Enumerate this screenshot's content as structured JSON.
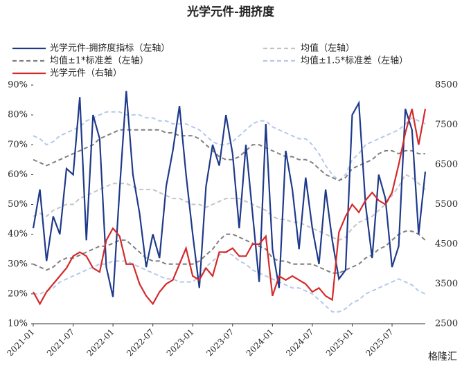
{
  "chart_data": {
    "type": "line",
    "title": "光学元件-拥挤度",
    "x": [
      "2021-01",
      "2021-02",
      "2021-03",
      "2021-04",
      "2021-05",
      "2021-06",
      "2021-07",
      "2021-08",
      "2021-09",
      "2021-10",
      "2021-11",
      "2021-12",
      "2022-01",
      "2022-02",
      "2022-03",
      "2022-04",
      "2022-05",
      "2022-06",
      "2022-07",
      "2022-08",
      "2022-09",
      "2022-10",
      "2022-11",
      "2022-12",
      "2023-01",
      "2023-02",
      "2023-03",
      "2023-04",
      "2023-05",
      "2023-06",
      "2023-07",
      "2023-08",
      "2023-09",
      "2023-10",
      "2023-11",
      "2023-12",
      "2024-01",
      "2024-02",
      "2024-03",
      "2024-04",
      "2024-05",
      "2024-06",
      "2024-07",
      "2024-08",
      "2024-09",
      "2024-10",
      "2024-11",
      "2024-12",
      "2025-01",
      "2025-02",
      "2025-03",
      "2025-04",
      "2025-05",
      "2025-06",
      "2025-07",
      "2025-08",
      "2025-09",
      "2025-10",
      "2025-11",
      "2025-12"
    ],
    "xticks": [
      "2021-01",
      "2021-07",
      "2022-01",
      "2022-07",
      "2023-01",
      "2023-07",
      "2024-01",
      "2024-07",
      "2025-01",
      "2025-07"
    ],
    "ylim": [
      10,
      90
    ],
    "yticks": [
      {
        "value": 10,
        "label": "10%"
      },
      {
        "value": 20,
        "label": "20%"
      },
      {
        "value": 30,
        "label": "30%"
      },
      {
        "value": 40,
        "label": "40%"
      },
      {
        "value": 50,
        "label": "50%"
      },
      {
        "value": 60,
        "label": "60%"
      },
      {
        "value": 70,
        "label": "70%"
      },
      {
        "value": 80,
        "label": "80%"
      },
      {
        "value": 90,
        "label": "90%"
      }
    ],
    "y2lim": [
      2500,
      8500
    ],
    "y2ticks": [
      2500,
      3500,
      4500,
      5500,
      6500,
      7500,
      8500
    ],
    "series": [
      {
        "name": "光学元件-拥挤度指标（左轴）",
        "color": "#1f3a8a",
        "dash": false,
        "values": [
          42,
          55,
          31,
          46,
          40,
          62,
          60,
          86,
          38,
          80,
          72,
          29,
          19,
          55,
          88,
          60,
          47,
          29,
          40,
          32,
          56,
          68,
          83,
          60,
          40,
          22,
          56,
          70,
          63,
          80,
          67,
          42,
          70,
          47,
          24,
          77,
          35,
          22,
          68,
          55,
          35,
          59,
          42,
          30,
          55,
          38,
          25,
          28,
          80,
          84,
          50,
          32,
          60,
          52,
          29,
          36,
          82,
          75,
          40,
          61
        ]
      },
      {
        "name": "均值（左轴）",
        "color": "#c4c4c4",
        "dash": true,
        "values": [
          46,
          47,
          46,
          48,
          49,
          50,
          50,
          52,
          53,
          54,
          55,
          56,
          57,
          57,
          57,
          56,
          55,
          55,
          55,
          54,
          53,
          52,
          52,
          51,
          50,
          50,
          49,
          50,
          51,
          52,
          52,
          52,
          51,
          50,
          49,
          48,
          46,
          45,
          45,
          44,
          44,
          43,
          42,
          41,
          40,
          39,
          38,
          39,
          42,
          44,
          45,
          46,
          48,
          50,
          53,
          56,
          60,
          59,
          57,
          55
        ]
      },
      {
        "name": "均值±1*标准差（左轴）",
        "color": "#7f7f7f",
        "dash": true,
        "upper": [
          65,
          64,
          63,
          64,
          65,
          66,
          67,
          68,
          69,
          70,
          72,
          73,
          74,
          75,
          75,
          75,
          75,
          75,
          75,
          75,
          74,
          74,
          73,
          73,
          73,
          72,
          70,
          68,
          66,
          65,
          65,
          66,
          68,
          70,
          70,
          69,
          68,
          67,
          66,
          66,
          65,
          65,
          64,
          62,
          60,
          59,
          58,
          59,
          62,
          63,
          64,
          65,
          67,
          68,
          68,
          67,
          68,
          68,
          67,
          67
        ],
        "lower": [
          30,
          29,
          28,
          29,
          31,
          32,
          32,
          33,
          34,
          35,
          36,
          36,
          37,
          38,
          38,
          36,
          34,
          32,
          31,
          31,
          30,
          30,
          30,
          30,
          30,
          31,
          33,
          35,
          38,
          40,
          40,
          39,
          38,
          37,
          36,
          35,
          32,
          31,
          31,
          30,
          30,
          30,
          30,
          29,
          28,
          27,
          27,
          28,
          29,
          30,
          32,
          33,
          35,
          36,
          38,
          40,
          41,
          41,
          40,
          38
        ]
      },
      {
        "name": "均值±1.5*标准差（左轴）",
        "color": "#b4c8ec",
        "dash": true,
        "upper": [
          73,
          72,
          70,
          71,
          73,
          74,
          75,
          76,
          78,
          79,
          80,
          81,
          81,
          81,
          80,
          80,
          80,
          79,
          79,
          78,
          78,
          77,
          77,
          77,
          76,
          75,
          73,
          71,
          70,
          70,
          71,
          73,
          75,
          77,
          78,
          78,
          76,
          75,
          74,
          73,
          72,
          72,
          70,
          67,
          63,
          60,
          58,
          60,
          65,
          67,
          70,
          71,
          72,
          73,
          74,
          75,
          77,
          79,
          78,
          77
        ],
        "lower": [
          20,
          20,
          21,
          22,
          24,
          25,
          26,
          27,
          28,
          29,
          30,
          30,
          31,
          31,
          31,
          30,
          29,
          28,
          27,
          26,
          25,
          25,
          24,
          24,
          24,
          26,
          29,
          31,
          33,
          34,
          33,
          31,
          30,
          28,
          27,
          26,
          25,
          24,
          23,
          22,
          22,
          21,
          20,
          18,
          16,
          14,
          14,
          15,
          17,
          18,
          20,
          21,
          22,
          23,
          24,
          25,
          24,
          23,
          21,
          20
        ]
      },
      {
        "name": "光学元件（右轴）",
        "color": "#d42a2a",
        "dash": false,
        "axis": "y2",
        "values": [
          3300,
          3000,
          3300,
          3500,
          3700,
          3900,
          4200,
          4300,
          4200,
          3900,
          3800,
          4600,
          4900,
          4700,
          4000,
          4000,
          3500,
          3200,
          3000,
          3300,
          3500,
          3600,
          4000,
          4400,
          3700,
          3600,
          3900,
          3700,
          4300,
          4300,
          4400,
          4200,
          4200,
          4500,
          4500,
          4700,
          3200,
          3700,
          3600,
          3700,
          3600,
          3500,
          3300,
          3400,
          3200,
          3100,
          4800,
          5200,
          5500,
          5300,
          5600,
          5800,
          5600,
          5500,
          5800,
          6500,
          7300,
          7900,
          7000,
          7900
        ]
      }
    ],
    "watermark": "格隆汇"
  }
}
